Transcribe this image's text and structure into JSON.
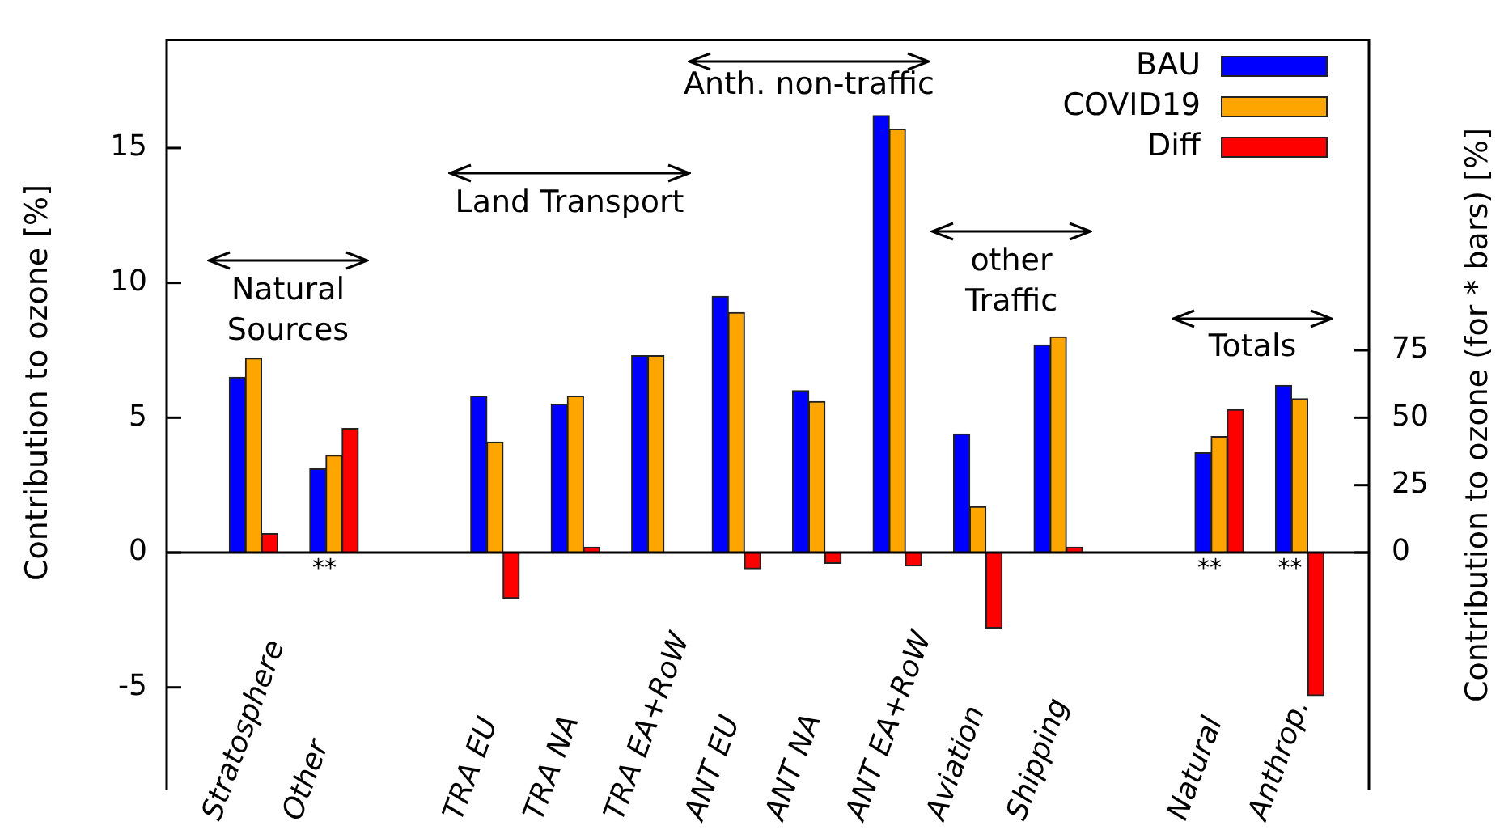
{
  "chart_data": {
    "type": "bar",
    "xlabel": null,
    "ylabel": "Contribution to ozone [%]",
    "y2label": "Contribution to ozone (for * bars) [%]",
    "categories": [
      "Stratosphere",
      "Other",
      null,
      "TRA EU",
      "TRA NA",
      "TRA EA+RoW",
      "ANT EU",
      "ANT NA",
      "ANT EA+RoW",
      "Aviation",
      "Shipping",
      null,
      "Natural",
      "Anthrop."
    ],
    "series": [
      {
        "name": "BAU",
        "color": "#0000ff",
        "values": [
          6.5,
          null,
          null,
          5.8,
          5.5,
          7.3,
          9.5,
          6.0,
          16.2,
          4.4,
          7.7,
          null,
          null,
          null
        ]
      },
      {
        "name": "COVID19",
        "color": "#ffa500",
        "values": [
          7.2,
          null,
          null,
          4.1,
          5.8,
          7.3,
          8.9,
          5.6,
          15.7,
          1.7,
          8.0,
          null,
          null,
          null
        ]
      },
      {
        "name": "Diff",
        "color": "#ff0000",
        "values": [
          0.7,
          null,
          null,
          -1.7,
          0.2,
          0,
          -0.6,
          -0.4,
          -0.5,
          -2.8,
          0.2,
          null,
          null,
          null
        ]
      },
      {
        "color": "#0000ff",
        "axis": "y2",
        "values": [
          null,
          31,
          null,
          null,
          null,
          null,
          null,
          null,
          null,
          null,
          null,
          null,
          37,
          62
        ]
      },
      {
        "color": "#ffa500",
        "axis": "y2",
        "values": [
          null,
          36,
          null,
          null,
          null,
          null,
          null,
          null,
          null,
          null,
          null,
          null,
          43,
          57
        ]
      },
      {
        "color": "#ff0000",
        "axis": "y2",
        "values": [
          null,
          46,
          null,
          null,
          null,
          null,
          null,
          null,
          null,
          null,
          null,
          null,
          53,
          -53
        ]
      }
    ],
    "ylim": [
      -8.8,
      19
    ],
    "yticks": [
      -5,
      0,
      5,
      10,
      15
    ],
    "y2lim": [
      -88,
      190
    ],
    "y2ticks": [
      0,
      25,
      50,
      75
    ],
    "grid": false,
    "legend": "top right",
    "annotations": [
      "Natural Sources",
      "Land Transport",
      "Anth. non-traffic",
      "other Traffic",
      "Totals",
      {
        "text": "**",
        "x": "Other",
        "y": 0
      },
      {
        "text": "**",
        "x": "Natural",
        "y": 0
      },
      {
        "text": "**",
        "x": "Anthrop.",
        "y": 0
      }
    ]
  }
}
